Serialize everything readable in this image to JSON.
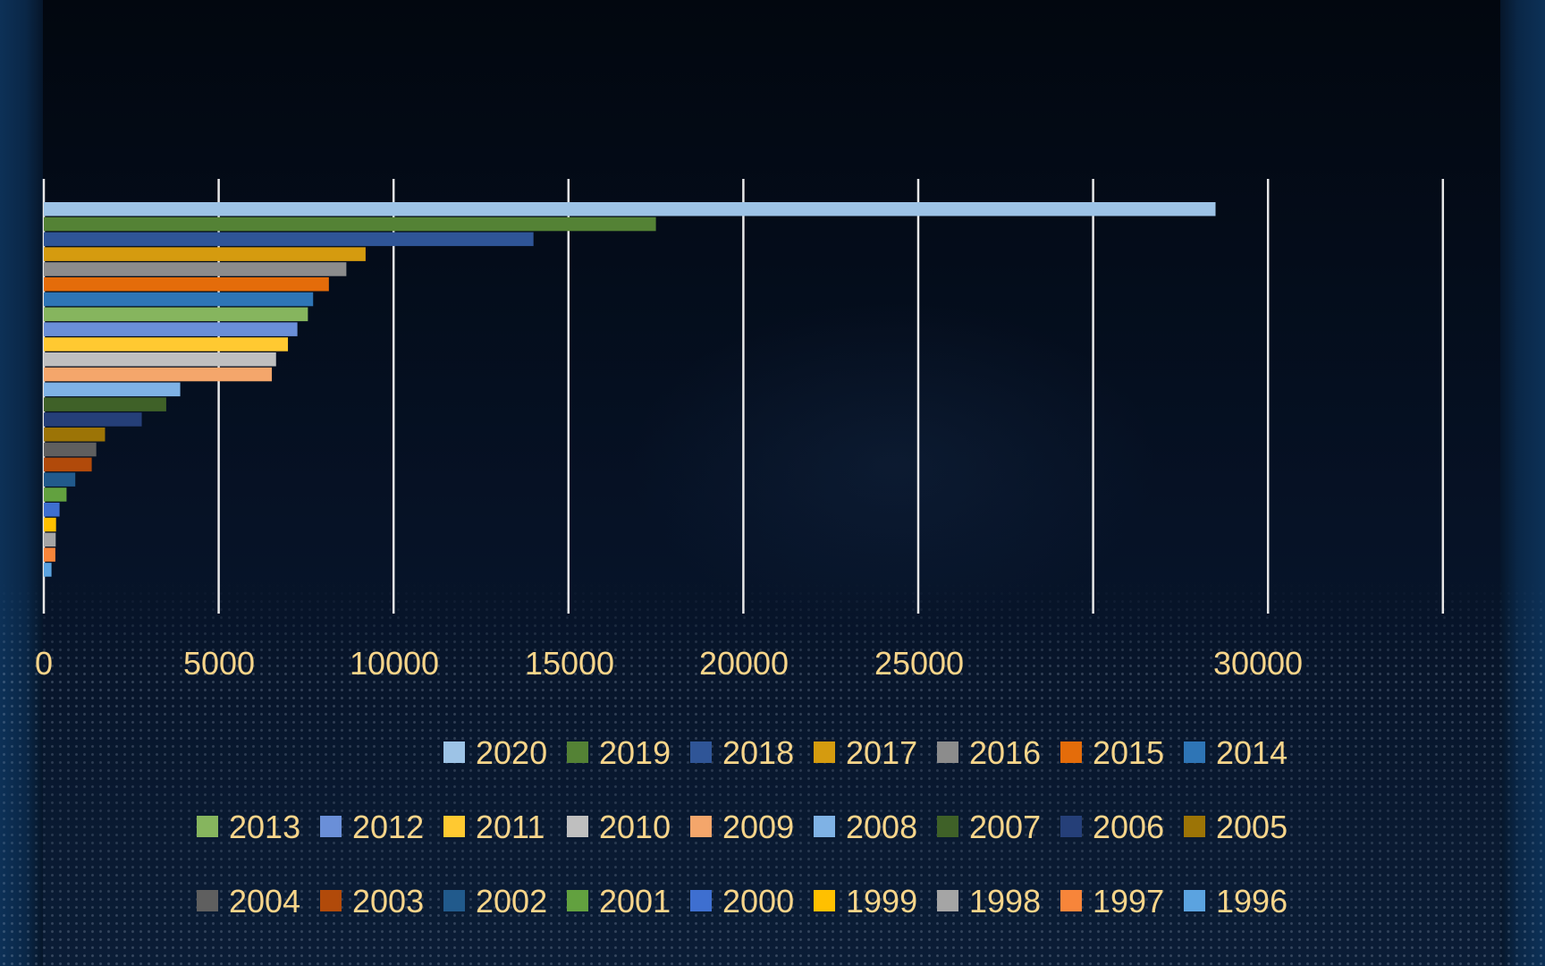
{
  "chart_data": {
    "type": "bar",
    "orientation": "horizontal",
    "title": "",
    "xlabel": "",
    "ylabel": "",
    "xlim": [
      0,
      40000
    ],
    "x_ticks": [
      0,
      5000,
      10000,
      15000,
      20000,
      25000,
      30000
    ],
    "x_tick_labels": [
      "0",
      "5000",
      "10000",
      "15000",
      "20000",
      "25000",
      "30000"
    ],
    "grid": true,
    "legend": "bottom",
    "series": [
      {
        "name": "2020",
        "value": 33500,
        "color": "#9dc3e6"
      },
      {
        "name": "2019",
        "value": 17500,
        "color": "#548235"
      },
      {
        "name": "2018",
        "value": 14000,
        "color": "#2f5597"
      },
      {
        "name": "2017",
        "value": 9200,
        "color": "#d59b0f"
      },
      {
        "name": "2016",
        "value": 8650,
        "color": "#8c8c8c"
      },
      {
        "name": "2015",
        "value": 8150,
        "color": "#e46c0a"
      },
      {
        "name": "2014",
        "value": 7700,
        "color": "#2e75b6"
      },
      {
        "name": "2013",
        "value": 7550,
        "color": "#86b55e"
      },
      {
        "name": "2012",
        "value": 7250,
        "color": "#6a8fd8"
      },
      {
        "name": "2011",
        "value": 6980,
        "color": "#ffc931"
      },
      {
        "name": "2010",
        "value": 6640,
        "color": "#bfbfbf"
      },
      {
        "name": "2009",
        "value": 6520,
        "color": "#f4a66b"
      },
      {
        "name": "2008",
        "value": 3900,
        "color": "#7fb2e5"
      },
      {
        "name": "2007",
        "value": 3500,
        "color": "#3f6128"
      },
      {
        "name": "2006",
        "value": 2800,
        "color": "#253f78"
      },
      {
        "name": "2005",
        "value": 1750,
        "color": "#9c7406"
      },
      {
        "name": "2004",
        "value": 1500,
        "color": "#5f5f5f"
      },
      {
        "name": "2003",
        "value": 1370,
        "color": "#b14a0a"
      },
      {
        "name": "2002",
        "value": 900,
        "color": "#215a8c"
      },
      {
        "name": "2001",
        "value": 650,
        "color": "#62a13f"
      },
      {
        "name": "2000",
        "value": 450,
        "color": "#3e6fd0"
      },
      {
        "name": "1999",
        "value": 350,
        "color": "#ffc000"
      },
      {
        "name": "1998",
        "value": 340,
        "color": "#a5a5a5"
      },
      {
        "name": "1997",
        "value": 330,
        "color": "#f7853a"
      },
      {
        "name": "1996",
        "value": 220,
        "color": "#5ba3e0"
      }
    ]
  }
}
